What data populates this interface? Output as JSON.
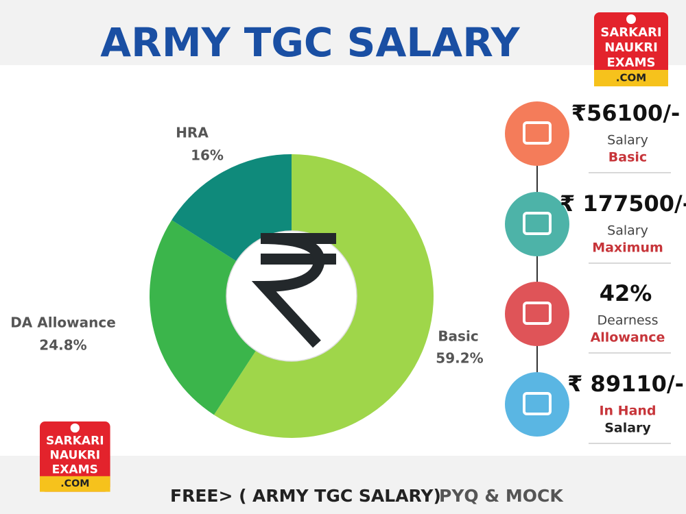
{
  "title": "ARMY TGC SALARY",
  "logo": {
    "lines": [
      "SARKARI",
      "NAUKRI",
      "EXAMS",
      ".COM"
    ]
  },
  "chart_data": {
    "type": "pie",
    "donut": true,
    "categories": [
      "Basic",
      "DA Allowance",
      "HRA"
    ],
    "values": [
      59.2,
      24.8,
      16
    ],
    "value_labels": [
      "59.2%",
      "24.8%",
      "16%"
    ],
    "colors": [
      "#9fd64a",
      "#3bb54b",
      "#0f8a7b"
    ]
  },
  "info_cards": [
    {
      "amount": "₹56100/-",
      "line1": "Salary",
      "line2": "Basic",
      "line1_first": true
    },
    {
      "amount": "₹ 177500/-",
      "line1": "Salary",
      "line2": "Maximum",
      "line1_first": true
    },
    {
      "amount": "42%",
      "line1": "Dearness",
      "line2": "Allowance",
      "line1_first": true
    },
    {
      "amount": "₹ 89110/-",
      "line1": "In Hand",
      "line2": "Salary",
      "line1_first": false
    }
  ],
  "footer": {
    "part1": "FREE> (",
    "part2": "ARMY TGC SALARY)",
    "part3": "PYQ & MOCK"
  }
}
